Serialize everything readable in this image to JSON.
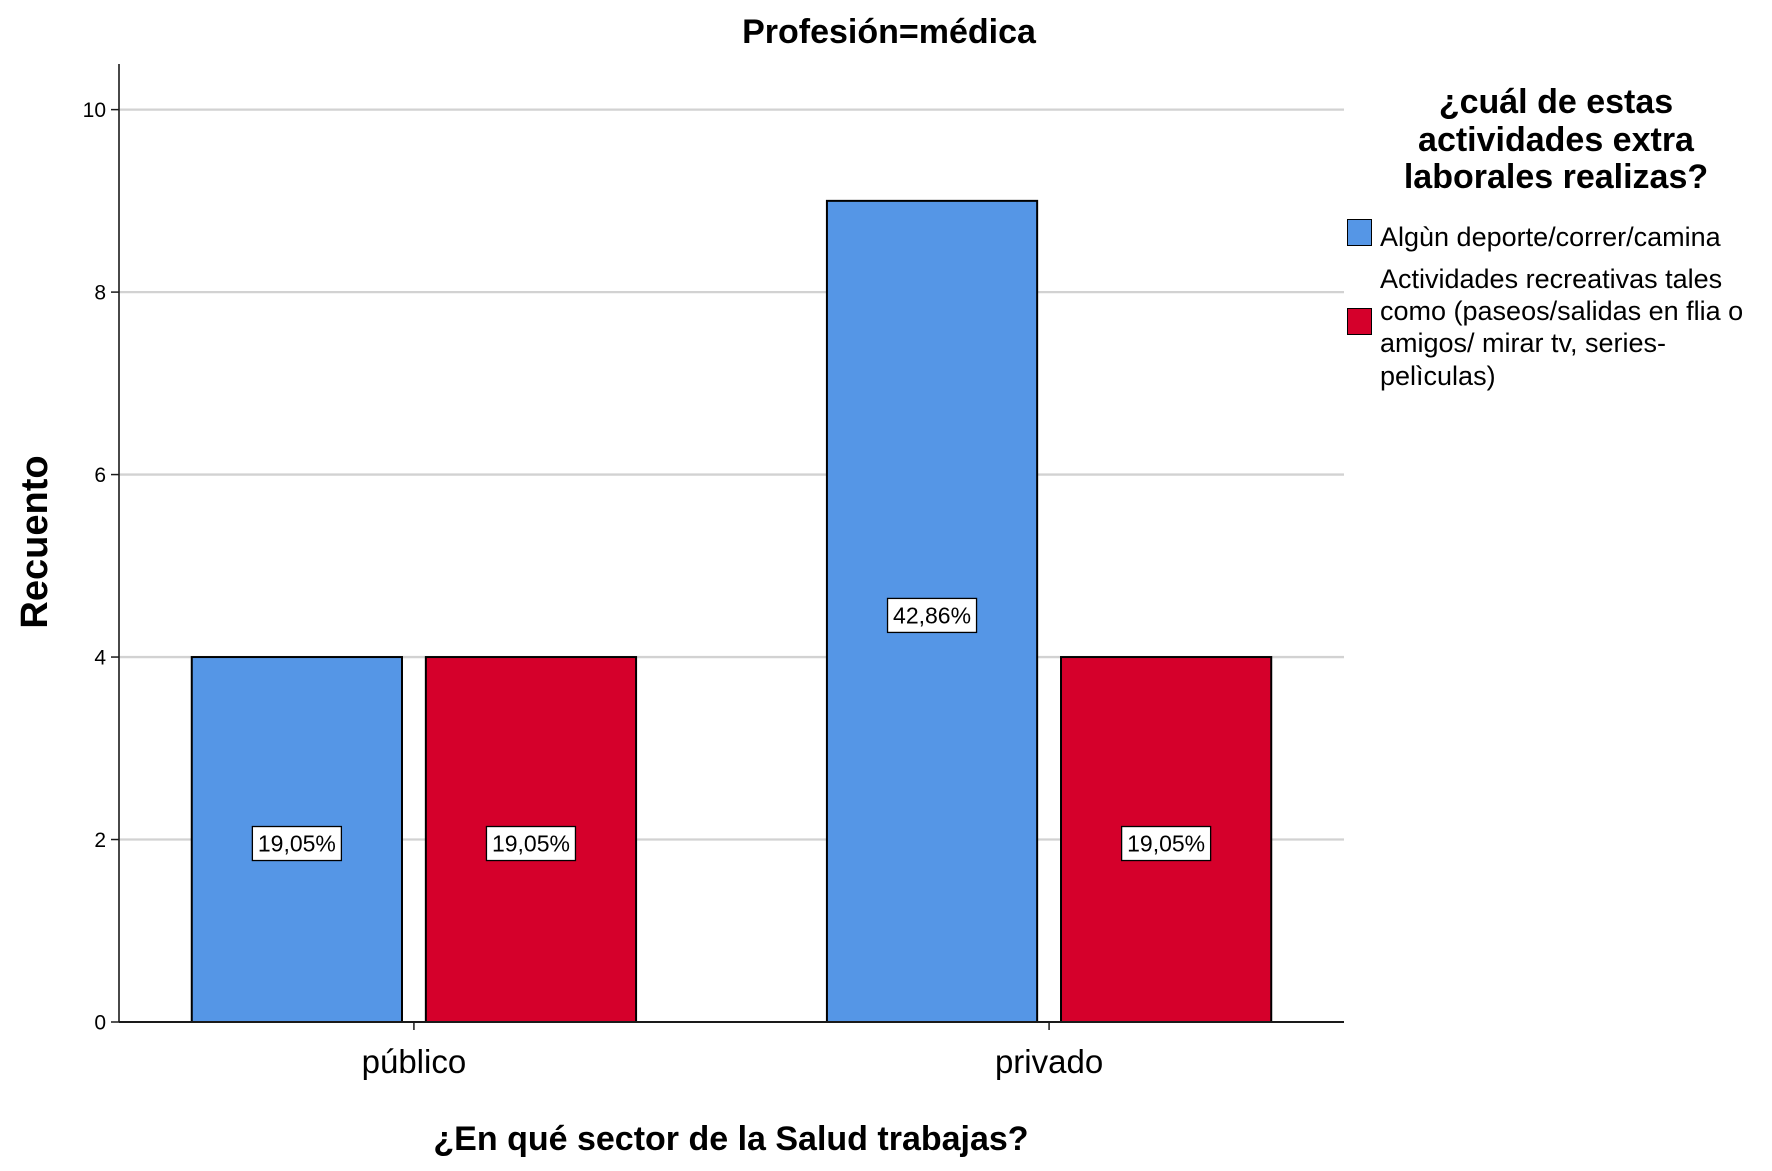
{
  "chart_data": {
    "type": "bar",
    "title": "Profesión=médica",
    "xlabel": "¿En qué sector de la Salud trabajas?",
    "ylabel": "Recuento",
    "categories": [
      "público",
      "privado"
    ],
    "ylim": [
      0,
      10.5
    ],
    "yticks": [
      0,
      2,
      4,
      6,
      8,
      10
    ],
    "grid": true,
    "legend_title": "¿cuál de estas actividades extra laborales realizas?",
    "legend_position": "right",
    "series": [
      {
        "name": "Algùn deporte/correr/camina",
        "values": [
          4,
          9
        ],
        "labels": [
          "19,05%",
          "42,86%"
        ],
        "color": "#5596E6"
      },
      {
        "name": "Actividades recreativas tales como (paseos/salidas en flia o amigos/ mirar tv, series-pelìculas)",
        "values": [
          4,
          4
        ],
        "labels": [
          "19,05%",
          "19,05%"
        ],
        "color": "#D5002B"
      }
    ]
  }
}
